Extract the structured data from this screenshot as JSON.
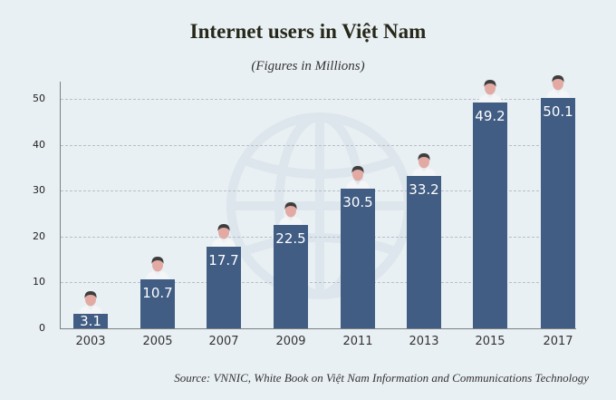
{
  "chart_data": {
    "type": "bar",
    "title": "Internet users in Việt Nam",
    "subtitle": "(Figures in Millions)",
    "categories": [
      "2003",
      "2005",
      "2007",
      "2009",
      "2011",
      "2013",
      "2015",
      "2017"
    ],
    "values": [
      3.1,
      10.7,
      17.7,
      22.5,
      30.5,
      33.2,
      49.2,
      50.1
    ],
    "value_labels": [
      "3.1",
      "10.7",
      "17.7",
      "22.5",
      "30.5",
      "33.2",
      "49.2",
      "50.1"
    ],
    "xlabel": "",
    "ylabel": "",
    "ylim": [
      0,
      50
    ],
    "yticks": [
      "0",
      "10",
      "20",
      "30",
      "40",
      "50"
    ],
    "grid": true,
    "bar_color": "#415d84",
    "background_color": "#e9f0f4",
    "decorations": [
      "person-icon above each bar",
      "globe watermark background"
    ],
    "source": "Source: VNNIC, White Book on Việt Nam Information and Communications Technology"
  }
}
